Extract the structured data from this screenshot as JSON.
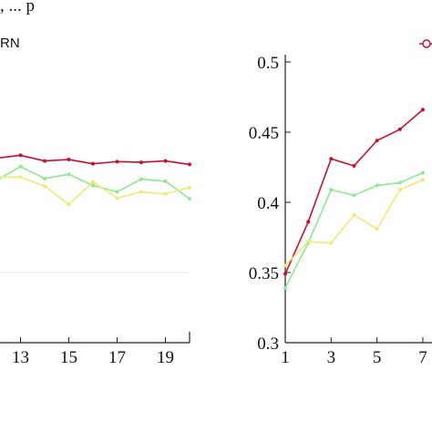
{
  "top_caption": ", ... p",
  "chart_data": [
    {
      "type": "line",
      "panel": "left",
      "xlabel": "",
      "ylabel": "",
      "legend_text": "RN",
      "xlim": [
        12,
        20
      ],
      "ylim": [
        0.3,
        0.5
      ],
      "xticks": [
        13,
        15,
        17,
        19
      ],
      "gridline_y": [
        0.35
      ],
      "series": [
        {
          "color": "#c8102e",
          "marker": "circle",
          "x": [
            12,
            13,
            14,
            15,
            16,
            17,
            18,
            19,
            20
          ],
          "y": [
            0.4315,
            0.4335,
            0.4295,
            0.4305,
            0.4275,
            0.429,
            0.4285,
            0.4295,
            0.427
          ]
        },
        {
          "color": "#8fe88f",
          "marker": "circle",
          "x": [
            12,
            13,
            14,
            15,
            16,
            17,
            18,
            19,
            20
          ],
          "y": [
            0.4155,
            0.4255,
            0.417,
            0.42,
            0.412,
            0.4075,
            0.4165,
            0.415,
            0.4025
          ]
        },
        {
          "color": "#f0e878",
          "marker": "circle",
          "x": [
            12,
            13,
            14,
            15,
            16,
            17,
            18,
            19,
            20
          ],
          "y": [
            0.418,
            0.418,
            0.4115,
            0.3985,
            0.4145,
            0.403,
            0.4075,
            0.406,
            0.4105
          ]
        }
      ]
    },
    {
      "type": "line",
      "panel": "right",
      "xlabel": "",
      "ylabel": "",
      "xlim": [
        1,
        7.4
      ],
      "ylim": [
        0.3,
        0.5
      ],
      "xticks": [
        1,
        3,
        5,
        7
      ],
      "yticks": [
        0.3,
        0.35,
        0.4,
        0.45,
        0.5
      ],
      "ytick_labels": [
        "0.3",
        "0.35",
        "0.4",
        "0.45",
        "0.5"
      ],
      "xtick_labels": [
        "1",
        "3",
        "5",
        "7"
      ],
      "series": [
        {
          "color": "#c8102e",
          "marker": "circle",
          "x": [
            1,
            2,
            3,
            4,
            5,
            6,
            7
          ],
          "y": [
            0.349,
            0.386,
            0.431,
            0.426,
            0.444,
            0.452,
            0.466
          ]
        },
        {
          "color": "#8fe88f",
          "marker": "circle",
          "x": [
            1,
            2,
            3,
            4,
            5,
            6,
            7
          ],
          "y": [
            0.339,
            0.371,
            0.409,
            0.405,
            0.412,
            0.414,
            0.421
          ]
        },
        {
          "color": "#f0e878",
          "marker": "circle",
          "x": [
            1,
            2,
            3,
            4,
            5,
            6,
            7
          ],
          "y": [
            0.355,
            0.372,
            0.371,
            0.391,
            0.381,
            0.409,
            0.416
          ]
        }
      ]
    }
  ]
}
